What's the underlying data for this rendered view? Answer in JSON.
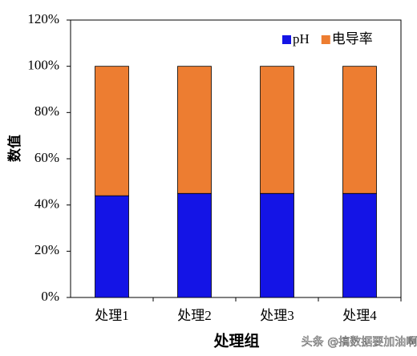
{
  "chart_data": {
    "type": "stacked-bar",
    "x_label": "处理组",
    "y_label": "数值",
    "categories": [
      "处理1",
      "处理2",
      "处理3",
      "处理4"
    ],
    "series": [
      {
        "name": "pH",
        "color": "#1414e6",
        "values": [
          44,
          45,
          45,
          45
        ]
      },
      {
        "name": "电导率",
        "color": "#ed7d31",
        "values": [
          56,
          55,
          55,
          55
        ]
      }
    ],
    "ylim": [
      0,
      120
    ],
    "yticks": [
      {
        "value": 0,
        "label": "0%"
      },
      {
        "value": 20,
        "label": "20%"
      },
      {
        "value": 40,
        "label": "40%"
      },
      {
        "value": 60,
        "label": "60%"
      },
      {
        "value": 80,
        "label": "80%"
      },
      {
        "value": 100,
        "label": "100%"
      },
      {
        "value": 120,
        "label": "120%"
      }
    ],
    "legend": "top-right",
    "watermark": "头条 @搞数据要加油啊"
  }
}
